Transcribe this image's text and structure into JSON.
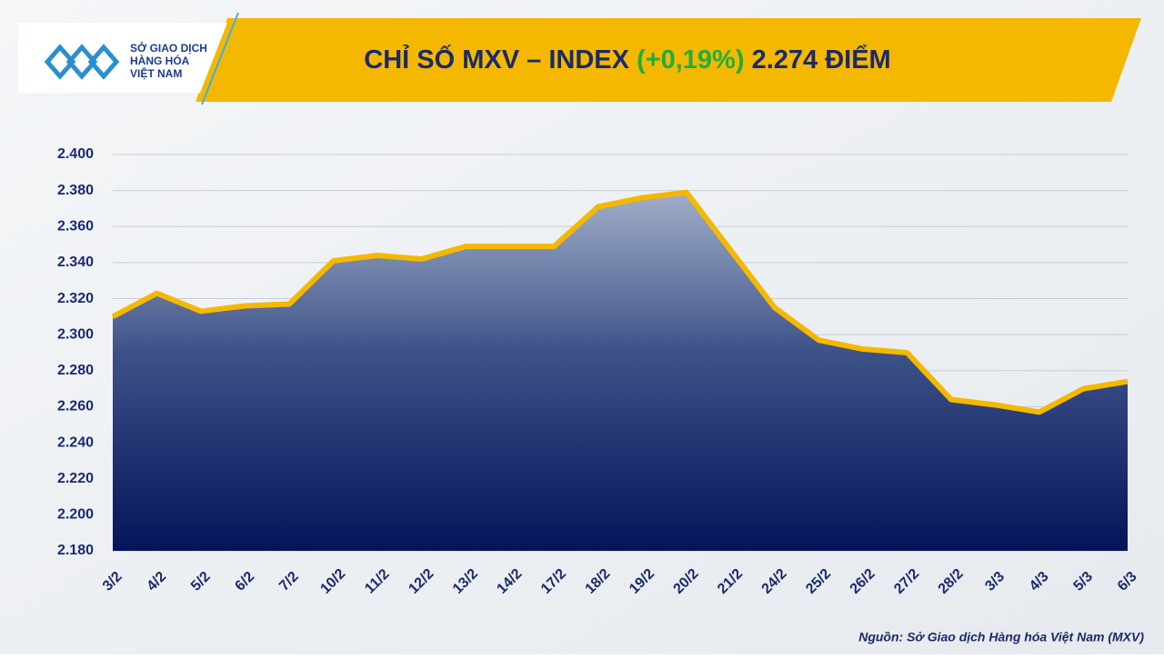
{
  "logo": [
    "SỞ GIAO DỊCH",
    "HÀNG HÓA",
    "VIỆT NAM"
  ],
  "chart_data": {
    "type": "area",
    "title": "CHỈ SỐ MXV – INDEX",
    "change": "(+0,19%)",
    "last": "2.274 ĐIỂM",
    "source": "Nguồn: Sở Giao dịch Hàng hóa Việt Nam (MXV)",
    "categories": [
      "3/2",
      "4/2",
      "5/2",
      "6/2",
      "7/2",
      "10/2",
      "11/2",
      "12/2",
      "13/2",
      "14/2",
      "17/2",
      "18/2",
      "19/2",
      "20/2",
      "21/2",
      "24/2",
      "25/2",
      "26/2",
      "27/2",
      "28/2",
      "3/3",
      "4/3",
      "5/3",
      "6/3"
    ],
    "values": [
      2310,
      2323,
      2313,
      2316,
      2317,
      2341,
      2344,
      2342,
      2349,
      2349,
      2349,
      2371,
      2376,
      2379,
      2347,
      2315,
      2297,
      2292,
      2290,
      2264,
      2261,
      2257,
      2270,
      2274
    ],
    "color": "#f5b800",
    "change_color": "#1fae3a",
    "grid": true,
    "ylim": [
      2180,
      2400
    ],
    "yticks": [
      {
        "value": 2180,
        "label": "2.180"
      },
      {
        "value": 2200,
        "label": "2.200"
      },
      {
        "value": 2220,
        "label": "2.220"
      },
      {
        "value": 2240,
        "label": "2.240"
      },
      {
        "value": 2260,
        "label": "2.260"
      },
      {
        "value": 2280,
        "label": "2.280"
      },
      {
        "value": 2300,
        "label": "2.300"
      },
      {
        "value": 2320,
        "label": "2.320"
      },
      {
        "value": 2340,
        "label": "2.340"
      },
      {
        "value": 2360,
        "label": "2.360"
      },
      {
        "value": 2380,
        "label": "2.380"
      },
      {
        "value": 2400,
        "label": "2.400"
      }
    ]
  }
}
